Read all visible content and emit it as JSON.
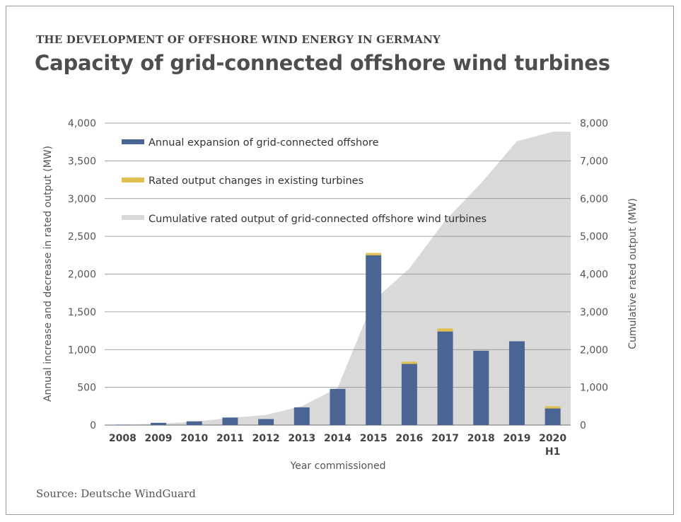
{
  "header": {
    "kicker": "THE DEVELOPMENT OF OFFSHORE WIND ENERGY IN GERMANY",
    "title": "Capacity of grid-connected offshore wind turbines"
  },
  "footer": {
    "source": "Source: Deutsche WindGuard"
  },
  "colors": {
    "annual": "#4a6594",
    "changes": "#e0c050",
    "cumulative": "#d9d9d9",
    "gridline": "#888888"
  },
  "chart_data": {
    "type": "bar",
    "categories": [
      "2008",
      "2009",
      "2010",
      "2011",
      "2012",
      "2013",
      "2014",
      "2015",
      "2016",
      "2017",
      "2018",
      "2019",
      "2020"
    ],
    "category_sublabels": [
      "",
      "",
      "",
      "",
      "",
      "",
      "",
      "",
      "",
      "",
      "",
      "",
      "H1"
    ],
    "series": [
      {
        "name": "Annual expansion of grid-connected offshore",
        "kind": "bar",
        "axis": "left",
        "values": [
          5,
          30,
          50,
          100,
          80,
          235,
          480,
          2250,
          810,
          1240,
          985,
          1110,
          220
        ]
      },
      {
        "name": "Rated output changes in existing turbines",
        "kind": "bar-stacked",
        "axis": "left",
        "values": [
          0,
          0,
          0,
          0,
          0,
          0,
          0,
          30,
          30,
          40,
          0,
          0,
          30
        ]
      },
      {
        "name": "Cumulative rated output of grid-connected offshore wind turbines",
        "kind": "area",
        "axis": "right",
        "values": [
          10,
          40,
          90,
          190,
          270,
          500,
          990,
          3300,
          4150,
          5420,
          6410,
          7520,
          7770
        ]
      }
    ],
    "xlabel": "Year commissioned",
    "ylabel": "Annual increase and decrease in rated output (MW)",
    "ylabel_right": "Cumulative rated output (MW)",
    "ylim": [
      0,
      4000
    ],
    "ylim_right": [
      0,
      8000
    ],
    "yticks": [
      "0",
      "500",
      "1,000",
      "1,500",
      "2,000",
      "2,500",
      "3,000",
      "3,500",
      "4,000"
    ],
    "yticks_right": [
      "0",
      "1,000",
      "2,000",
      "3,000",
      "4,000",
      "5,000",
      "6,000",
      "7,000",
      "8,000"
    ],
    "grid": true,
    "legend_position": "top-left"
  }
}
